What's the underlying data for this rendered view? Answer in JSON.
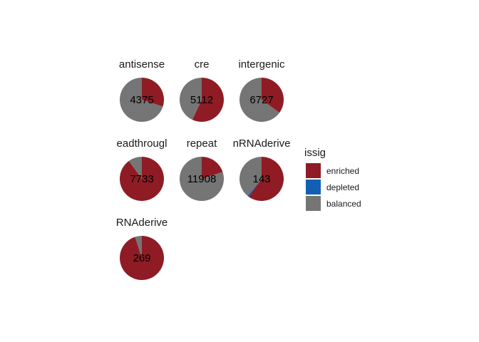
{
  "chart_data": {
    "type": "pie",
    "facet_layout": "3 columns",
    "legend": {
      "title": "issig",
      "position": "right",
      "entries": [
        {
          "label": "enriched",
          "color": "#8f1c24"
        },
        {
          "label": "depleted",
          "color": "#1260b4"
        },
        {
          "label": "balanced",
          "color": "#757575"
        }
      ]
    },
    "facets": [
      {
        "label": "antisense",
        "count": "4375",
        "enriched": 0.3,
        "depleted": 0.0,
        "balanced": 0.7
      },
      {
        "label": "cre",
        "count": "5112",
        "enriched": 0.57,
        "depleted": 0.0,
        "balanced": 0.43
      },
      {
        "label": "intergenic",
        "count": "6727",
        "enriched": 0.35,
        "depleted": 0.0,
        "balanced": 0.65
      },
      {
        "label": "eadthrougl",
        "count": "7733",
        "enriched": 0.9,
        "depleted": 0.0,
        "balanced": 0.1
      },
      {
        "label": "repeat",
        "count": "11908",
        "enriched": 0.2,
        "depleted": 0.0,
        "balanced": 0.8
      },
      {
        "label": "nRNAderive",
        "count": "143",
        "enriched": 0.6,
        "depleted": 0.01,
        "balanced": 0.39
      },
      {
        "label": "RNAderive",
        "count": "269",
        "enriched": 0.95,
        "depleted": 0.0,
        "balanced": 0.05
      }
    ]
  }
}
